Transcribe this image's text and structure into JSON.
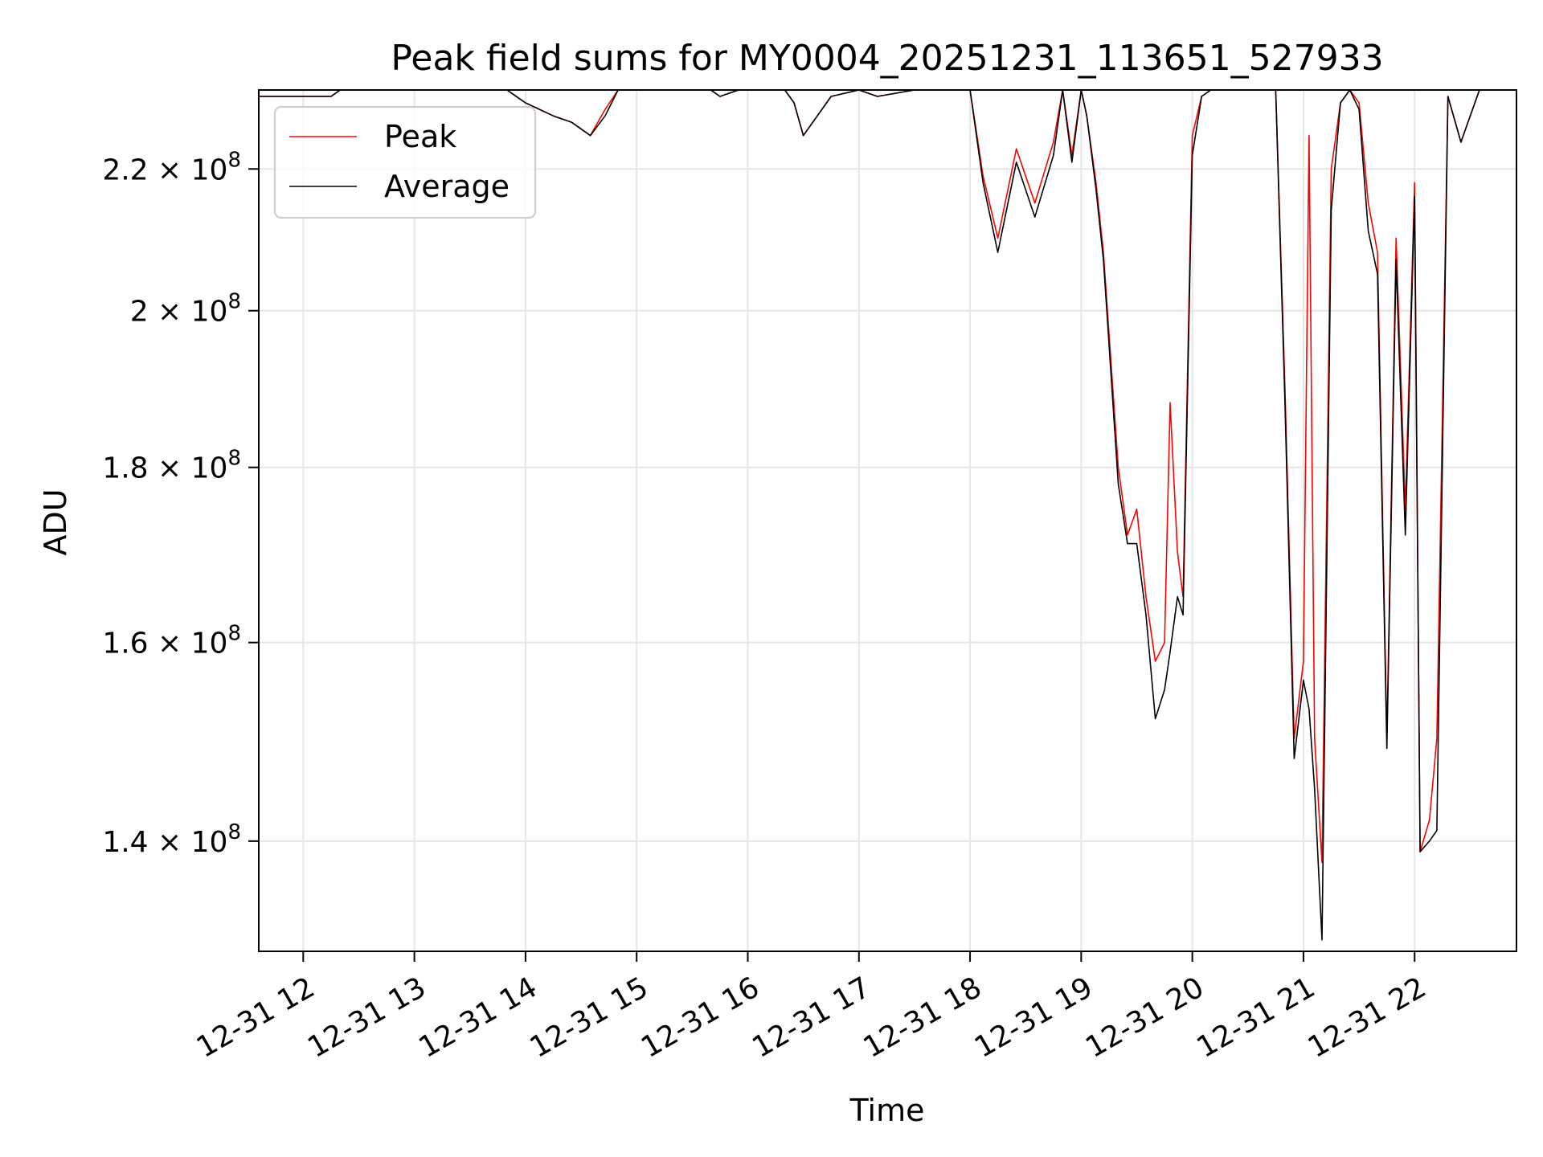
{
  "chart_data": {
    "type": "line",
    "title": "Peak field sums for MY0004_20251231_113651_527933",
    "xlabel": "Time",
    "ylabel": "ADU",
    "yscale": "log",
    "grid": true,
    "legend_position": "top-left",
    "xlim": [
      "2025-12-31 11:36",
      "2025-12-31 22:55"
    ],
    "ylim": [
      130000000,
      232000000
    ],
    "x_ticks": [
      "12-31 12",
      "12-31 13",
      "12-31 14",
      "12-31 15",
      "12-31 16",
      "12-31 17",
      "12-31 18",
      "12-31 19",
      "12-31 20",
      "12-31 21",
      "12-31 22"
    ],
    "x_tick_hours": [
      12,
      13,
      14,
      15,
      16,
      17,
      18,
      19,
      20,
      21,
      22
    ],
    "y_ticks": [
      {
        "value": 140000000,
        "mantissa": "1.4",
        "exponent": "8"
      },
      {
        "value": 160000000,
        "mantissa": "1.6",
        "exponent": "8"
      },
      {
        "value": 180000000,
        "mantissa": "1.8",
        "exponent": "8"
      },
      {
        "value": 200000000,
        "mantissa": "2",
        "exponent": "8"
      },
      {
        "value": 220000000,
        "mantissa": "2.2",
        "exponent": "8"
      }
    ],
    "series": [
      {
        "name": "Peak",
        "color": "#ff0000",
        "x": [
          "2025-12-31 11:36",
          "2025-12-31 12:15",
          "2025-12-31 12:20",
          "2025-12-31 13:50",
          "2025-12-31 14:00",
          "2025-12-31 14:15",
          "2025-12-31 14:25",
          "2025-12-31 14:35",
          "2025-12-31 14:43",
          "2025-12-31 14:50",
          "2025-12-31 15:40",
          "2025-12-31 15:45",
          "2025-12-31 15:55",
          "2025-12-31 16:20",
          "2025-12-31 16:25",
          "2025-12-31 16:30",
          "2025-12-31 16:45",
          "2025-12-31 17:00",
          "2025-12-31 17:10",
          "2025-12-31 17:30",
          "2025-12-31 18:00",
          "2025-12-31 18:07",
          "2025-12-31 18:15",
          "2025-12-31 18:25",
          "2025-12-31 18:35",
          "2025-12-31 18:45",
          "2025-12-31 18:50",
          "2025-12-31 18:55",
          "2025-12-31 19:00",
          "2025-12-31 19:03",
          "2025-12-31 19:08",
          "2025-12-31 19:12",
          "2025-12-31 19:20",
          "2025-12-31 19:25",
          "2025-12-31 19:30",
          "2025-12-31 19:35",
          "2025-12-31 19:40",
          "2025-12-31 19:45",
          "2025-12-31 19:48",
          "2025-12-31 19:52",
          "2025-12-31 19:55",
          "2025-12-31 20:00",
          "2025-12-31 20:05",
          "2025-12-31 20:10",
          "2025-12-31 20:30",
          "2025-12-31 20:45",
          "2025-12-31 20:50",
          "2025-12-31 20:55",
          "2025-12-31 21:00",
          "2025-12-31 21:03",
          "2025-12-31 21:06",
          "2025-12-31 21:10",
          "2025-12-31 21:15",
          "2025-12-31 21:20",
          "2025-12-31 21:25",
          "2025-12-31 21:30",
          "2025-12-31 21:35",
          "2025-12-31 21:40",
          "2025-12-31 21:45",
          "2025-12-31 21:50",
          "2025-12-31 21:55",
          "2025-12-31 22:00",
          "2025-12-31 22:03",
          "2025-12-31 22:08",
          "2025-12-31 22:12",
          "2025-12-31 22:18",
          "2025-12-31 22:25",
          "2025-12-31 22:35",
          "2025-12-31 22:55"
        ],
        "y": [
          231000000,
          231000000,
          232000000,
          232000000,
          230000000,
          228000000,
          227000000,
          225000000,
          229000000,
          232000000,
          232000000,
          231000000,
          232000000,
          232000000,
          230000000,
          225000000,
          231000000,
          232000000,
          231000000,
          232000000,
          232000000,
          219000000,
          210000000,
          223000000,
          215000000,
          224000000,
          232000000,
          222000000,
          232000000,
          228000000,
          218000000,
          208000000,
          180000000,
          172000000,
          175000000,
          165000000,
          158000000,
          160000000,
          188000000,
          170000000,
          165000000,
          225000000,
          231000000,
          232000000,
          232000000,
          232000000,
          190000000,
          150000000,
          158000000,
          225000000,
          150000000,
          138000000,
          220000000,
          230000000,
          232000000,
          230000000,
          215000000,
          208000000,
          150000000,
          210000000,
          175000000,
          218000000,
          139000000,
          142000000,
          150000000,
          231000000,
          224000000,
          232000000,
          232000000
        ]
      },
      {
        "name": "Average",
        "color": "#000000",
        "x": [
          "2025-12-31 11:36",
          "2025-12-31 12:15",
          "2025-12-31 12:20",
          "2025-12-31 13:50",
          "2025-12-31 14:00",
          "2025-12-31 14:15",
          "2025-12-31 14:25",
          "2025-12-31 14:35",
          "2025-12-31 14:43",
          "2025-12-31 14:50",
          "2025-12-31 15:40",
          "2025-12-31 15:45",
          "2025-12-31 15:55",
          "2025-12-31 16:20",
          "2025-12-31 16:25",
          "2025-12-31 16:30",
          "2025-12-31 16:45",
          "2025-12-31 17:00",
          "2025-12-31 17:10",
          "2025-12-31 17:30",
          "2025-12-31 18:00",
          "2025-12-31 18:07",
          "2025-12-31 18:15",
          "2025-12-31 18:25",
          "2025-12-31 18:35",
          "2025-12-31 18:45",
          "2025-12-31 18:50",
          "2025-12-31 18:55",
          "2025-12-31 19:00",
          "2025-12-31 19:03",
          "2025-12-31 19:08",
          "2025-12-31 19:12",
          "2025-12-31 19:20",
          "2025-12-31 19:25",
          "2025-12-31 19:30",
          "2025-12-31 19:35",
          "2025-12-31 19:40",
          "2025-12-31 19:45",
          "2025-12-31 19:48",
          "2025-12-31 19:52",
          "2025-12-31 19:55",
          "2025-12-31 20:00",
          "2025-12-31 20:05",
          "2025-12-31 20:10",
          "2025-12-31 20:30",
          "2025-12-31 20:45",
          "2025-12-31 20:50",
          "2025-12-31 20:55",
          "2025-12-31 21:00",
          "2025-12-31 21:03",
          "2025-12-31 21:06",
          "2025-12-31 21:10",
          "2025-12-31 21:15",
          "2025-12-31 21:20",
          "2025-12-31 21:25",
          "2025-12-31 21:30",
          "2025-12-31 21:35",
          "2025-12-31 21:40",
          "2025-12-31 21:45",
          "2025-12-31 21:50",
          "2025-12-31 21:55",
          "2025-12-31 22:00",
          "2025-12-31 22:03",
          "2025-12-31 22:08",
          "2025-12-31 22:12",
          "2025-12-31 22:18",
          "2025-12-31 22:25",
          "2025-12-31 22:35",
          "2025-12-31 22:55"
        ],
        "y": [
          231000000,
          231000000,
          232000000,
          232000000,
          230000000,
          228000000,
          227000000,
          225000000,
          228000000,
          232000000,
          232000000,
          231000000,
          232000000,
          232000000,
          230000000,
          225000000,
          231000000,
          232000000,
          231000000,
          232000000,
          232000000,
          218000000,
          208000000,
          221000000,
          213000000,
          222000000,
          232000000,
          221000000,
          232000000,
          228000000,
          217000000,
          207000000,
          178000000,
          171000000,
          171000000,
          163000000,
          152000000,
          155000000,
          159000000,
          165000000,
          163000000,
          222000000,
          231000000,
          232000000,
          232000000,
          232000000,
          188000000,
          148000000,
          156000000,
          153000000,
          145000000,
          131000000,
          214000000,
          230000000,
          232000000,
          229000000,
          211000000,
          205000000,
          149000000,
          207000000,
          172000000,
          216000000,
          139000000,
          140000000,
          141000000,
          231000000,
          224000000,
          232000000,
          232000000
        ]
      }
    ]
  }
}
